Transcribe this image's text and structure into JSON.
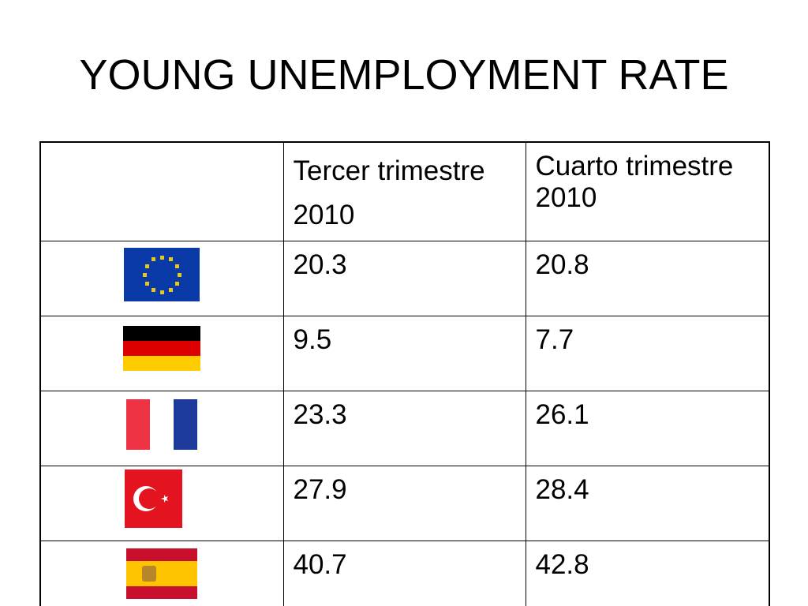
{
  "slide": {
    "title": "YOUNG UNEMPLOYMENT RATE"
  },
  "table": {
    "headers": {
      "col1_line1": "Tercer trimestre",
      "col1_line2": "2010",
      "col2_line1": "Cuarto trimestre",
      "col2_line2": "2010"
    },
    "rows": [
      {
        "flag": "eu-flag-icon",
        "q3": "20.3",
        "q4": "20.8"
      },
      {
        "flag": "germany-flag-icon",
        "q3": "9.5",
        "q4": "7.7"
      },
      {
        "flag": "france-flag-icon",
        "q3": "23.3",
        "q4": "26.1"
      },
      {
        "flag": "turkey-flag-icon",
        "q3": "27.9",
        "q4": "28.4"
      },
      {
        "flag": "spain-flag-icon",
        "q3": "40.7",
        "q4": "42.8"
      }
    ]
  },
  "colors": {
    "eu_blue": "#0a3aa8",
    "eu_star": "#e8c91a",
    "de_black": "#000000",
    "de_red": "#dd0000",
    "de_gold": "#ffcc00",
    "fr_blue": "#1c3a9a",
    "fr_red": "#ee3344",
    "tr_red": "#e3141f",
    "es_red": "#c8102e",
    "es_yellow": "#ffc400"
  }
}
